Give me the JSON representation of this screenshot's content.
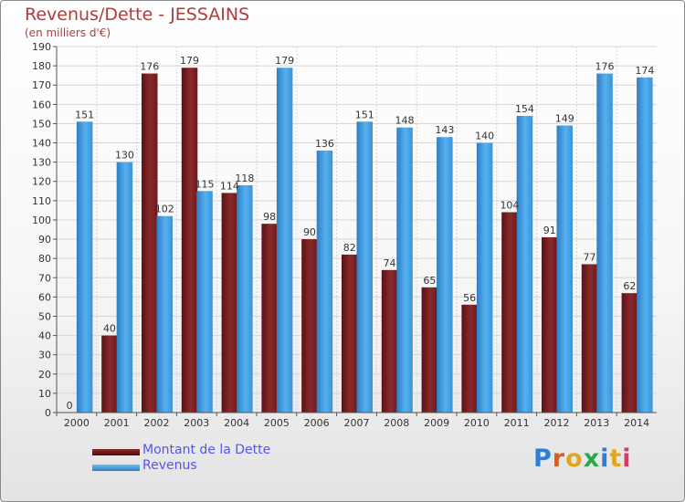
{
  "header": {
    "title": "Revenus/Dette - JESSAINS",
    "subtitle": "(en milliers d'€)"
  },
  "chart_data": {
    "type": "bar",
    "categories": [
      "2000",
      "2001",
      "2002",
      "2003",
      "2004",
      "2005",
      "2006",
      "2007",
      "2008",
      "2009",
      "2010",
      "2011",
      "2012",
      "2013",
      "2014"
    ],
    "series": [
      {
        "name": "Montant de la Dette",
        "color": "#7a1f22",
        "values": [
          0,
          40,
          176,
          179,
          114,
          98,
          90,
          82,
          74,
          65,
          56,
          104,
          91,
          77,
          62
        ]
      },
      {
        "name": "Revenus",
        "color": "#3d9ae0",
        "values": [
          151,
          130,
          102,
          115,
          118,
          179,
          136,
          151,
          148,
          143,
          140,
          154,
          149,
          176,
          174
        ]
      }
    ],
    "ylim": [
      0,
      190
    ],
    "ytick_step": 10,
    "grid": true,
    "legend": "bottom-left"
  },
  "legend": {
    "debt_label": "Montant de la Dette",
    "revenue_label": "Revenus",
    "debt_color": "#6b1a1c",
    "revenue_color": "#3d9ae0"
  },
  "logo": {
    "letters": [
      "P",
      "r",
      "o",
      "x",
      "i",
      "t",
      "i"
    ],
    "colors": [
      "#2d7fd6",
      "#e05a1e",
      "#e0a81e",
      "#2aa84a",
      "#2d7fd6",
      "#e0a81e",
      "#d63a6a"
    ]
  }
}
